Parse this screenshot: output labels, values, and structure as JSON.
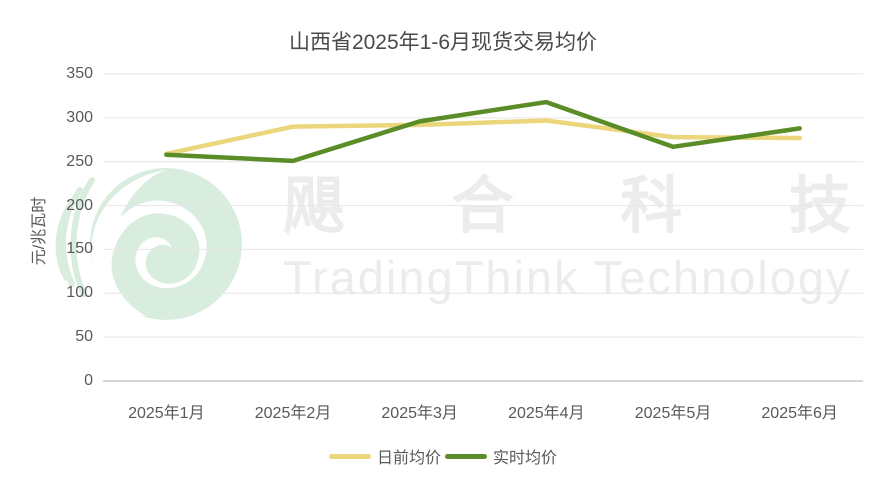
{
  "watermark": {
    "chinese": "飓合科技",
    "english": "TradingThink Technology",
    "text_color": "#ececec",
    "logo_color": "#d9edde"
  },
  "chart_data": {
    "type": "line",
    "title": "山西省2025年1-6月现货交易均价",
    "xlabel": "",
    "ylabel": "元/兆瓦时",
    "ylim": [
      0,
      350
    ],
    "yticks": [
      0,
      50,
      100,
      150,
      200,
      250,
      300,
      350
    ],
    "categories": [
      "2025年1月",
      "2025年2月",
      "2025年3月",
      "2025年4月",
      "2025年5月",
      "2025年6月"
    ],
    "series": [
      {
        "name": "日前均价",
        "color": "#ecd67c",
        "values": [
          259,
          290,
          292,
          297,
          278,
          277
        ]
      },
      {
        "name": "实时均价",
        "color": "#5a8d28",
        "values": [
          258,
          251,
          296,
          318,
          267,
          288
        ]
      }
    ],
    "grid": true,
    "grid_color": "#e6e6e6",
    "axis_line_color": "#d6d6d6",
    "legend_position": "bottom"
  }
}
